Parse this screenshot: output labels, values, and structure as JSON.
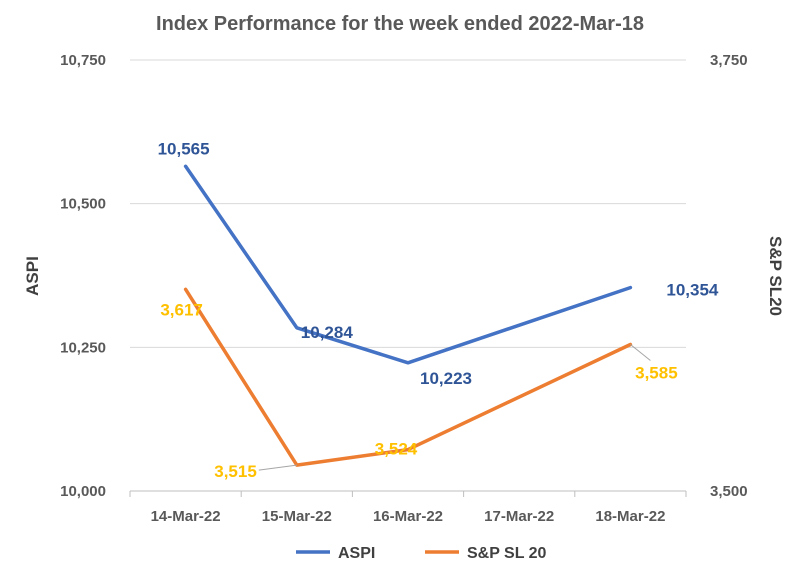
{
  "chart_data": {
    "type": "line",
    "title": "Index Performance for the week ended 2022-Mar-18",
    "categories": [
      "14-Mar-22",
      "15-Mar-22",
      "16-Mar-22",
      "17-Mar-22",
      "18-Mar-22"
    ],
    "y_left": {
      "label": "ASPI",
      "range": [
        10000,
        10750
      ],
      "ticks": [
        "10,000",
        "10,250",
        "10,500",
        "10,750"
      ]
    },
    "y_right": {
      "label": "S&P SL20",
      "range": [
        3500,
        3750
      ],
      "ticks": [
        "3,500",
        "3,750"
      ]
    },
    "series": [
      {
        "name": "ASPI",
        "axis": "left",
        "color": "#4472C4",
        "label_color": "#2F5597",
        "x": [
          "14-Mar-22",
          "15-Mar-22",
          "16-Mar-22",
          "18-Mar-22"
        ],
        "values": [
          10565,
          10284,
          10223,
          10354
        ],
        "labels": [
          "10,565",
          "10,284",
          "10,223",
          "10,354"
        ]
      },
      {
        "name": "S&P SL 20",
        "axis": "right",
        "color": "#ED7D31",
        "label_color": "#FFC000",
        "x": [
          "14-Mar-22",
          "15-Mar-22",
          "16-Mar-22",
          "18-Mar-22"
        ],
        "values": [
          3617,
          3515,
          3524,
          3585
        ],
        "labels": [
          "3,617",
          "3,515",
          "3,524",
          "3,585"
        ]
      }
    ],
    "grid": true,
    "legend": "bottom"
  }
}
